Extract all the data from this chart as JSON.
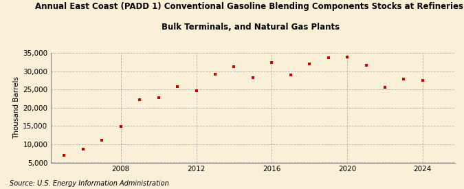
{
  "title_line1": "Annual East Coast (PADD 1) Conventional Gasoline Blending Components Stocks at Refineries,",
  "title_line2": "Bulk Terminals, and Natural Gas Plants",
  "ylabel": "Thousand Barrels",
  "source": "Source: U.S. Energy Information Administration",
  "background_color": "#faefd7",
  "marker_color": "#cc0000",
  "years": [
    2005,
    2006,
    2007,
    2008,
    2009,
    2010,
    2011,
    2012,
    2013,
    2014,
    2015,
    2016,
    2017,
    2018,
    2019,
    2020,
    2021,
    2022,
    2023,
    2024
  ],
  "values": [
    7000,
    8700,
    11100,
    14800,
    22200,
    22800,
    25800,
    24700,
    29100,
    31300,
    28200,
    32400,
    29000,
    31900,
    33600,
    33900,
    31600,
    25600,
    27900,
    27500
  ],
  "ylim": [
    5000,
    35000
  ],
  "yticks": [
    5000,
    10000,
    15000,
    20000,
    25000,
    30000,
    35000
  ],
  "xticks": [
    2008,
    2012,
    2016,
    2020,
    2024
  ],
  "grid_color": "#aaaaaa",
  "title_fontsize": 8.5,
  "axis_fontsize": 7.5,
  "source_fontsize": 7.0,
  "xlim_left": 2004.3,
  "xlim_right": 2025.7
}
